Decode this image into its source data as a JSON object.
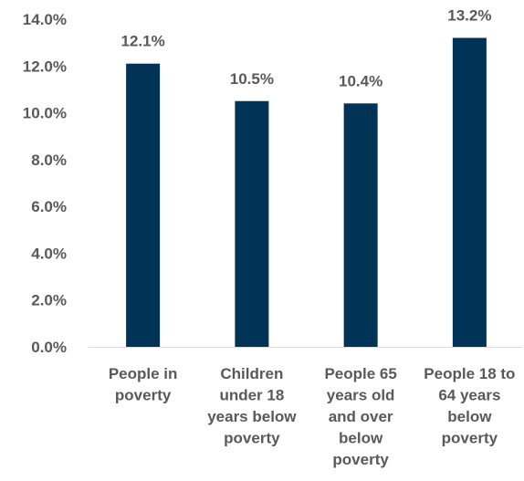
{
  "chart_data": {
    "type": "bar",
    "title": "",
    "xlabel": "",
    "ylabel": "",
    "categories": [
      [
        "People in",
        "poverty"
      ],
      [
        "Children",
        "under 18",
        "years below",
        "poverty"
      ],
      [
        "People 65",
        "years old",
        "and over",
        "below",
        "poverty"
      ],
      [
        "People 18 to",
        "64 years",
        "below",
        "poverty"
      ]
    ],
    "values": [
      12.1,
      10.5,
      10.4,
      13.2
    ],
    "value_labels": [
      "12.1%",
      "10.5%",
      "10.4%",
      "13.2%"
    ],
    "y_ticks": [
      "0.0%",
      "2.0%",
      "4.0%",
      "6.0%",
      "8.0%",
      "10.0%",
      "12.0%",
      "14.0%"
    ],
    "ylim": [
      0,
      14
    ],
    "grid": false,
    "legend": "none",
    "bar_color": "#003355",
    "axis_color": "#d9d9d9",
    "text_color": "#595959"
  }
}
